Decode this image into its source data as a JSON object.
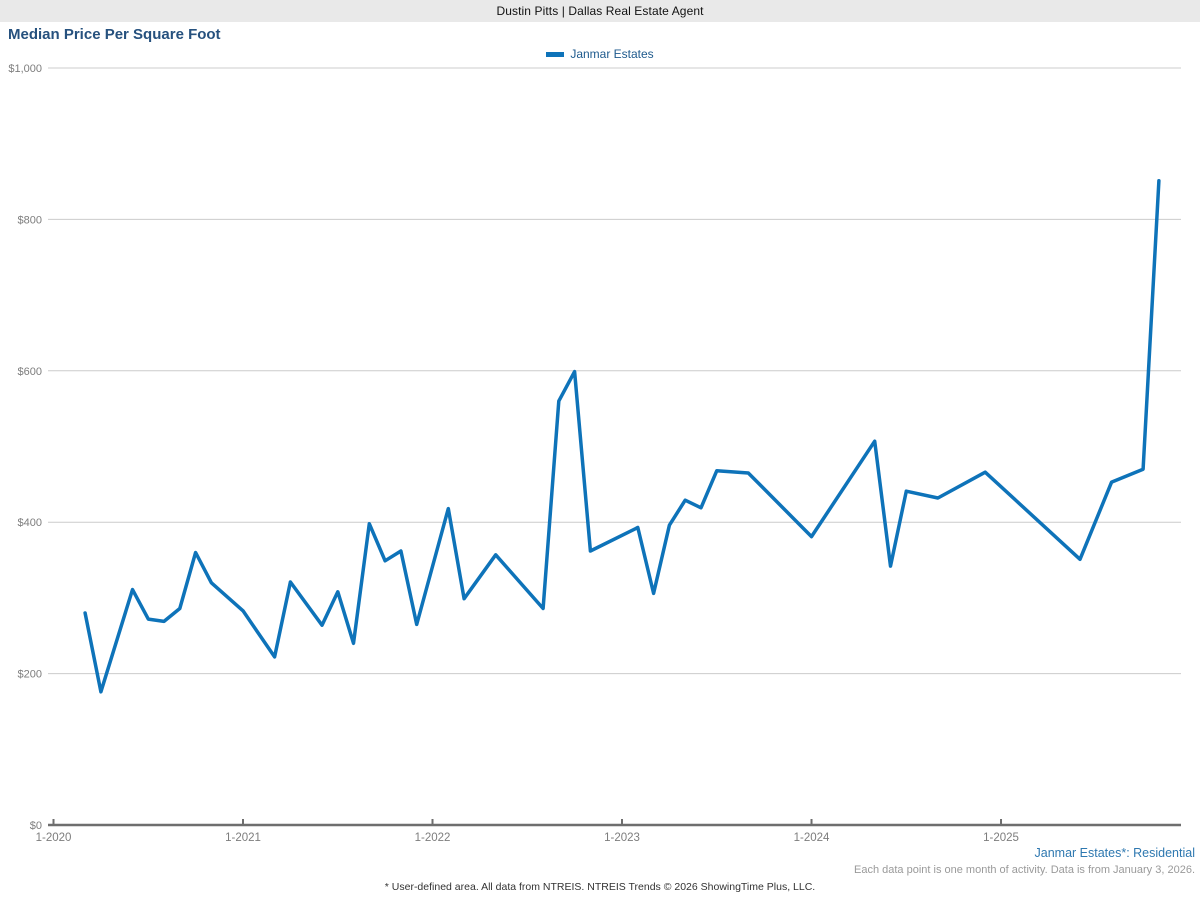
{
  "header": {
    "title": "Dustin Pitts | Dallas Real Estate Agent"
  },
  "page": {
    "title": "Median Price Per Square Foot"
  },
  "footnotes": {
    "series_note": "Janmar Estates*: Residential",
    "data_note": "Each data point is one month of activity. Data is from January 3, 2026.",
    "disclaimer": "* User-defined area. All data from NTREIS. NTREIS Trends © 2026 ShowingTime Plus, LLC."
  },
  "colors": {
    "header_bg": "#e9e9e9",
    "title_text": "#26517e",
    "legend_text": "#1e5a8d",
    "series_note_text": "#2e78b0",
    "note_text": "#9a9a9a"
  },
  "chart_data": {
    "type": "line",
    "title": "Median Price Per Square Foot",
    "series_name": "Janmar Estates",
    "xlabel": "",
    "ylabel": "",
    "ylim": [
      0,
      1000
    ],
    "y_tick_step": 200,
    "grid": "horizontal",
    "legend_position": "top-center",
    "y_tick_labels": [
      "$0",
      "$200",
      "$400",
      "$600",
      "$800",
      "$1,000"
    ],
    "x_tick_labels": [
      "1-2020",
      "1-2021",
      "1-2022",
      "1-2023",
      "1-2024",
      "1-2025"
    ],
    "colors": {
      "line": "#0e73b9",
      "grid": "#cccccc",
      "axis": "#6e6e6e",
      "tick_text": "#7d7d7d"
    },
    "points": [
      {
        "date": "3-2020",
        "value": 280
      },
      {
        "date": "4-2020",
        "value": 176
      },
      {
        "date": "6-2020",
        "value": 311
      },
      {
        "date": "7-2020",
        "value": 272
      },
      {
        "date": "8-2020",
        "value": 269
      },
      {
        "date": "9-2020",
        "value": 286
      },
      {
        "date": "10-2020",
        "value": 360
      },
      {
        "date": "11-2020",
        "value": 320
      },
      {
        "date": "1-2021",
        "value": 283
      },
      {
        "date": "3-2021",
        "value": 222
      },
      {
        "date": "4-2021",
        "value": 321
      },
      {
        "date": "6-2021",
        "value": 264
      },
      {
        "date": "7-2021",
        "value": 308
      },
      {
        "date": "8-2021",
        "value": 240
      },
      {
        "date": "9-2021",
        "value": 398
      },
      {
        "date": "10-2021",
        "value": 349
      },
      {
        "date": "11-2021",
        "value": 362
      },
      {
        "date": "12-2021",
        "value": 265
      },
      {
        "date": "2-2022",
        "value": 418
      },
      {
        "date": "3-2022",
        "value": 299
      },
      {
        "date": "5-2022",
        "value": 357
      },
      {
        "date": "8-2022",
        "value": 286
      },
      {
        "date": "9-2022",
        "value": 560
      },
      {
        "date": "10-2022",
        "value": 599
      },
      {
        "date": "11-2022",
        "value": 362
      },
      {
        "date": "2-2023",
        "value": 393
      },
      {
        "date": "3-2023",
        "value": 306
      },
      {
        "date": "4-2023",
        "value": 396
      },
      {
        "date": "5-2023",
        "value": 429
      },
      {
        "date": "6-2023",
        "value": 419
      },
      {
        "date": "7-2023",
        "value": 468
      },
      {
        "date": "9-2023",
        "value": 465
      },
      {
        "date": "1-2024",
        "value": 381
      },
      {
        "date": "5-2024",
        "value": 507
      },
      {
        "date": "6-2024",
        "value": 342
      },
      {
        "date": "7-2024",
        "value": 441
      },
      {
        "date": "9-2024",
        "value": 432
      },
      {
        "date": "12-2024",
        "value": 466
      },
      {
        "date": "6-2025",
        "value": 351
      },
      {
        "date": "8-2025",
        "value": 453
      },
      {
        "date": "10-2025",
        "value": 470
      },
      {
        "date": "11-2025",
        "value": 851
      }
    ]
  }
}
